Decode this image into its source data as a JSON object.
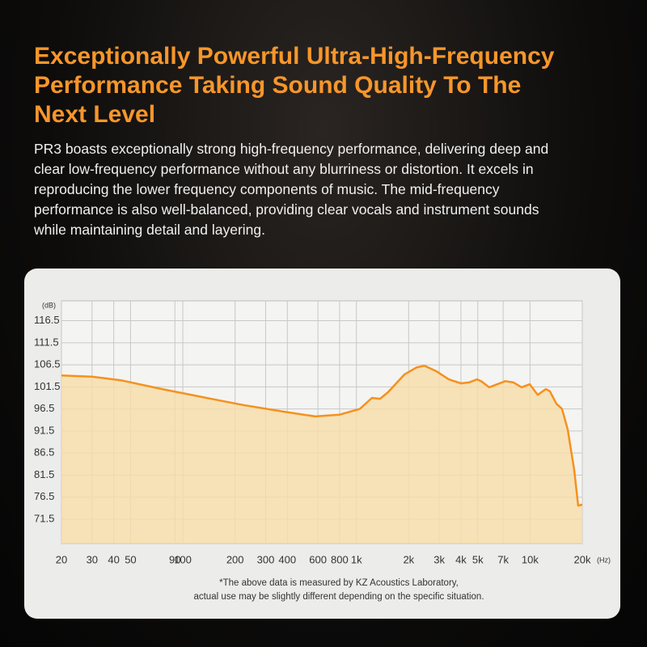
{
  "heading": [
    "Exceptionally Powerful Ultra-High-Frequency",
    "Performance Taking Sound Quality To The",
    "Next Level"
  ],
  "description": [
    "PR3 boasts exceptionally strong high-frequency performance, delivering deep and",
    "clear low-frequency performance without any blurriness or distortion. It excels in",
    "reproducing the lower frequency components of music. The mid-frequency",
    "performance is also well-balanced, providing clear vocals and instrument sounds",
    "while maintaining detail and layering."
  ],
  "chart_data": {
    "type": "line",
    "x_label": "(Hz)",
    "y_label": "(dB)",
    "x_log": true,
    "grid": true,
    "color": "#f5911e",
    "fill": "#f7dca8",
    "xlim": [
      20,
      20000
    ],
    "ylim": [
      66,
      121
    ],
    "xticks": [
      20,
      30,
      40,
      50,
      90,
      100,
      200,
      300,
      400,
      600,
      800,
      {
        "value": 1000,
        "label": "1k"
      },
      {
        "value": 2000,
        "label": "2k"
      },
      {
        "value": 3000,
        "label": "3k"
      },
      {
        "value": 4000,
        "label": "4k"
      },
      {
        "value": 5000,
        "label": "5k"
      },
      {
        "value": 7000,
        "label": "7k"
      },
      {
        "value": 10000,
        "label": "10k"
      },
      {
        "value": 20000,
        "label": "20k"
      }
    ],
    "yticks": [
      116.5,
      111.5,
      106.5,
      101.5,
      96.5,
      91.5,
      86.5,
      81.5,
      76.5,
      71.5
    ],
    "x": [
      20,
      30,
      44,
      76,
      129,
      221,
      378,
      580,
      800,
      1047,
      1229,
      1368,
      1523,
      1888,
      2217,
      2468,
      2900,
      3404,
      3998,
      4452,
      4955,
      5228,
      5820,
      6481,
      7212,
      8032,
      8944,
      9956,
      11078,
      12332,
      13012,
      14178,
      15281,
      16478,
      17950,
      18938,
      20000
    ],
    "values": [
      104.1,
      103.8,
      103.0,
      101.0,
      99.2,
      97.4,
      95.9,
      94.8,
      95.2,
      96.5,
      99.0,
      98.8,
      100.3,
      104.3,
      105.9,
      106.3,
      105.0,
      103.2,
      102.3,
      102.5,
      103.2,
      102.8,
      101.4,
      102.1,
      102.8,
      102.5,
      101.4,
      102.1,
      99.7,
      101.0,
      100.5,
      97.7,
      96.5,
      91.9,
      82.8,
      74.6,
      74.8
    ],
    "notes": [
      "*The above data is measured by KZ Acoustics Laboratory,",
      "actual use may be slightly different depending on the specific situation."
    ]
  }
}
